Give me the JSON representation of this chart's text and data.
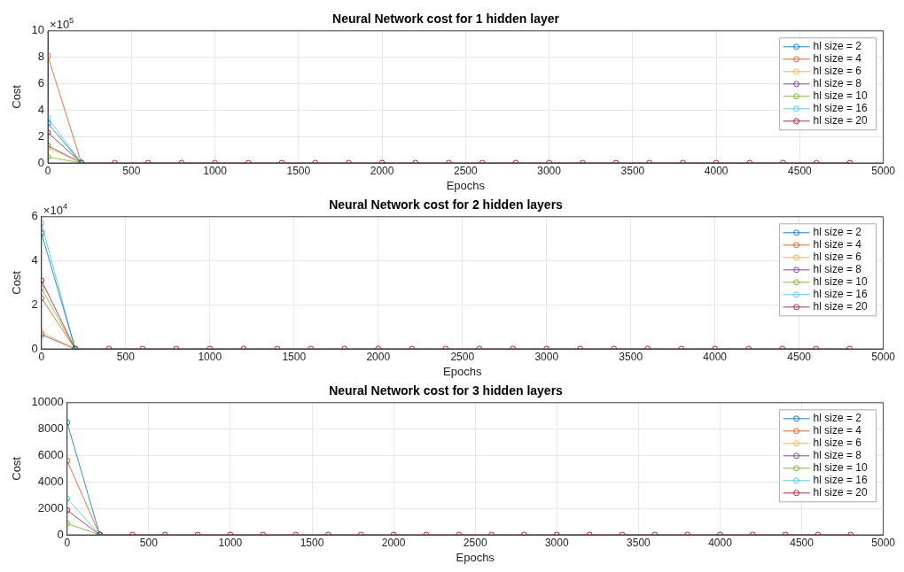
{
  "chart_data": [
    {
      "type": "line",
      "title": "Neural Network cost for 1 hidden layer",
      "xlabel": "Epochs",
      "ylabel": "Cost",
      "annotations": [
        "×10$^{5}$"
      ],
      "x": [
        0,
        200,
        400,
        600,
        800,
        1000,
        1200,
        1400,
        1600,
        1800,
        2000,
        2200,
        2400,
        2600,
        2800,
        3000,
        3200,
        3400,
        3600,
        3800,
        4000,
        4200,
        4400,
        4600,
        4800
      ],
      "xlim": [
        0,
        5000
      ],
      "xticks": [
        0,
        500,
        1000,
        1500,
        2000,
        2500,
        3000,
        3500,
        4000,
        4500,
        5000
      ],
      "ylim": [
        0,
        10
      ],
      "yticks": [
        0,
        2,
        4,
        6,
        8,
        10
      ],
      "grid": true,
      "legend": "top right",
      "marker": "circle",
      "line_style": "solid",
      "series": [
        {
          "name": "hl size = 2",
          "color": "#0072bd",
          "values": [
            3.0,
            0,
            null,
            null,
            null,
            null,
            null,
            null,
            null,
            null,
            null,
            null,
            null,
            null,
            null,
            null,
            null,
            null,
            null,
            null,
            null,
            null,
            null,
            null,
            null
          ]
        },
        {
          "name": "hl size = 4",
          "color": "#d95319",
          "values": [
            8.1,
            0,
            null,
            null,
            null,
            null,
            null,
            null,
            null,
            null,
            null,
            null,
            null,
            null,
            null,
            null,
            null,
            null,
            null,
            null,
            null,
            null,
            null,
            null,
            null
          ]
        },
        {
          "name": "hl size = 6",
          "color": "#edb120",
          "values": [
            1.15,
            0,
            null,
            null,
            null,
            null,
            null,
            null,
            null,
            null,
            null,
            null,
            null,
            null,
            null,
            null,
            null,
            null,
            null,
            null,
            null,
            null,
            null,
            null,
            null
          ]
        },
        {
          "name": "hl size = 8",
          "color": "#7e2f8e",
          "values": [
            1.3,
            0,
            null,
            null,
            null,
            null,
            null,
            null,
            null,
            null,
            null,
            null,
            null,
            null,
            null,
            null,
            null,
            null,
            null,
            null,
            null,
            null,
            null,
            null,
            null
          ]
        },
        {
          "name": "hl size = 10",
          "color": "#77ac30",
          "values": [
            0.45,
            0,
            null,
            null,
            null,
            null,
            null,
            null,
            null,
            null,
            null,
            null,
            null,
            null,
            null,
            null,
            null,
            null,
            null,
            null,
            null,
            null,
            null,
            null,
            null
          ]
        },
        {
          "name": "hl size = 16",
          "color": "#4dbeee",
          "values": [
            3.4,
            0,
            null,
            null,
            null,
            null,
            null,
            null,
            null,
            null,
            null,
            null,
            null,
            null,
            null,
            null,
            null,
            null,
            null,
            null,
            null,
            null,
            null,
            null,
            null
          ]
        },
        {
          "name": "hl size = 20",
          "color": "#a2142f",
          "values": [
            2.3,
            0,
            0,
            0,
            0,
            0,
            0,
            0,
            0,
            0,
            0,
            0,
            0,
            0,
            0,
            0,
            0,
            0,
            0,
            0,
            0,
            0,
            0,
            0,
            0
          ]
        }
      ]
    },
    {
      "type": "line",
      "title": "Neural Network cost for 2 hidden layers",
      "xlabel": "Epochs",
      "ylabel": "Cost",
      "annotations": [
        "×10$^{4}$"
      ],
      "x": [
        0,
        200,
        400,
        600,
        800,
        1000,
        1200,
        1400,
        1600,
        1800,
        2000,
        2200,
        2400,
        2600,
        2800,
        3000,
        3200,
        3400,
        3600,
        3800,
        4000,
        4200,
        4400,
        4600,
        4800
      ],
      "xlim": [
        0,
        5000
      ],
      "xticks": [
        0,
        500,
        1000,
        1500,
        2000,
        2500,
        3000,
        3500,
        4000,
        4500,
        5000
      ],
      "ylim": [
        0,
        6
      ],
      "yticks": [
        0,
        2,
        4,
        6
      ],
      "grid": true,
      "legend": "top right",
      "marker": "circle",
      "line_style": "solid",
      "series": [
        {
          "name": "hl size = 2",
          "color": "#0072bd",
          "values": [
            5.25,
            0,
            null,
            null,
            null,
            null,
            null,
            null,
            null,
            null,
            null,
            null,
            null,
            null,
            null,
            null,
            null,
            null,
            null,
            null,
            null,
            null,
            null,
            null,
            null
          ]
        },
        {
          "name": "hl size = 4",
          "color": "#d95319",
          "values": [
            2.3,
            0,
            null,
            null,
            null,
            null,
            null,
            null,
            null,
            null,
            null,
            null,
            null,
            null,
            null,
            null,
            null,
            null,
            null,
            null,
            null,
            null,
            null,
            null,
            null
          ]
        },
        {
          "name": "hl size = 6",
          "color": "#edb120",
          "values": [
            0.75,
            0,
            null,
            null,
            null,
            null,
            null,
            null,
            null,
            null,
            null,
            null,
            null,
            null,
            null,
            null,
            null,
            null,
            null,
            null,
            null,
            null,
            null,
            null,
            null
          ]
        },
        {
          "name": "hl size = 8",
          "color": "#7e2f8e",
          "values": [
            0.65,
            0,
            null,
            null,
            null,
            null,
            null,
            null,
            null,
            null,
            null,
            null,
            null,
            null,
            null,
            null,
            null,
            null,
            null,
            null,
            null,
            null,
            null,
            null,
            null
          ]
        },
        {
          "name": "hl size = 10",
          "color": "#77ac30",
          "values": [
            2.75,
            0,
            null,
            null,
            null,
            null,
            null,
            null,
            null,
            null,
            null,
            null,
            null,
            null,
            null,
            null,
            null,
            null,
            null,
            null,
            null,
            null,
            null,
            null,
            null
          ]
        },
        {
          "name": "hl size = 16",
          "color": "#4dbeee",
          "values": [
            5.7,
            0,
            null,
            null,
            null,
            null,
            null,
            null,
            null,
            null,
            null,
            null,
            null,
            null,
            null,
            null,
            null,
            null,
            null,
            null,
            null,
            null,
            null,
            null,
            null
          ]
        },
        {
          "name": "hl size = 20",
          "color": "#a2142f",
          "values": [
            3.1,
            0,
            0,
            0,
            0,
            0,
            0,
            0,
            0,
            0,
            0,
            0,
            0,
            0,
            0,
            0,
            0,
            0,
            0,
            0,
            0,
            0,
            0,
            0,
            0
          ]
        }
      ]
    },
    {
      "type": "line",
      "title": "Neural Network cost for 3 hidden layers",
      "xlabel": "Epochs",
      "ylabel": "Cost",
      "x": [
        0,
        200,
        400,
        600,
        800,
        1000,
        1200,
        1400,
        1600,
        1800,
        2000,
        2200,
        2400,
        2600,
        2800,
        3000,
        3200,
        3400,
        3600,
        3800,
        4000,
        4200,
        4400,
        4600,
        4800
      ],
      "xlim": [
        0,
        5000
      ],
      "xticks": [
        0,
        500,
        1000,
        1500,
        2000,
        2500,
        3000,
        3500,
        4000,
        4500,
        5000
      ],
      "ylim": [
        0,
        10000
      ],
      "yticks": [
        0,
        2000,
        4000,
        6000,
        8000,
        10000
      ],
      "grid": true,
      "legend": "top right",
      "marker": "circle",
      "line_style": "solid",
      "series": [
        {
          "name": "hl size = 2",
          "color": "#0072bd",
          "values": [
            8500,
            0,
            null,
            null,
            null,
            null,
            null,
            null,
            null,
            null,
            null,
            null,
            null,
            null,
            null,
            null,
            null,
            null,
            null,
            null,
            null,
            null,
            null,
            null,
            null
          ]
        },
        {
          "name": "hl size = 4",
          "color": "#d95319",
          "values": [
            5600,
            0,
            null,
            null,
            null,
            null,
            null,
            null,
            null,
            null,
            null,
            null,
            null,
            null,
            null,
            null,
            null,
            null,
            null,
            null,
            null,
            null,
            null,
            null,
            null
          ]
        },
        {
          "name": "hl size = 6",
          "color": "#edb120",
          "values": [
            null,
            0,
            null,
            null,
            null,
            null,
            null,
            null,
            null,
            null,
            null,
            null,
            null,
            null,
            null,
            null,
            null,
            null,
            null,
            null,
            null,
            null,
            null,
            null,
            null
          ]
        },
        {
          "name": "hl size = 8",
          "color": "#7e2f8e",
          "values": [
            null,
            0,
            null,
            null,
            null,
            null,
            null,
            null,
            null,
            null,
            null,
            null,
            null,
            null,
            null,
            null,
            null,
            null,
            null,
            null,
            null,
            null,
            null,
            null,
            null
          ]
        },
        {
          "name": "hl size = 10",
          "color": "#77ac30",
          "values": [
            850,
            0,
            null,
            null,
            null,
            null,
            null,
            null,
            null,
            null,
            null,
            null,
            null,
            null,
            null,
            null,
            null,
            null,
            null,
            null,
            null,
            null,
            null,
            null,
            null
          ]
        },
        {
          "name": "hl size = 16",
          "color": "#4dbeee",
          "values": [
            2750,
            0,
            null,
            null,
            null,
            null,
            null,
            null,
            null,
            null,
            null,
            null,
            null,
            null,
            null,
            null,
            null,
            null,
            null,
            null,
            null,
            null,
            null,
            null,
            null
          ]
        },
        {
          "name": "hl size = 20",
          "color": "#a2142f",
          "values": [
            1850,
            0,
            0,
            0,
            0,
            0,
            0,
            0,
            0,
            0,
            0,
            0,
            0,
            0,
            0,
            0,
            0,
            0,
            0,
            0,
            0,
            0,
            0,
            0,
            0
          ]
        }
      ]
    }
  ]
}
